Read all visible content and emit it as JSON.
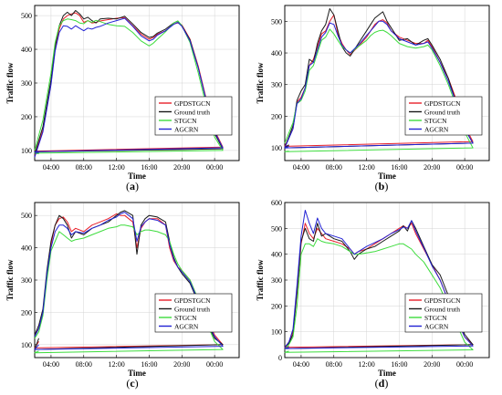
{
  "colors": {
    "GPDSTGCN": "#e8202a",
    "Ground truth": "#1a1a1a",
    "STGCN": "#3ddc3d",
    "AGCRN": "#2222d4"
  },
  "chart_data": [
    {
      "type": "line",
      "caption": "(a)",
      "xlabel": "Time",
      "ylabel": "Traffic flow",
      "xticks": [
        "04:00",
        "08:00",
        "12:00",
        "16:00",
        "20:00",
        "00:00"
      ],
      "yticks": [
        100,
        200,
        300,
        400,
        500
      ],
      "ylim": [
        70,
        530
      ],
      "x": [
        2.0,
        3.0,
        4.0,
        4.5,
        5.0,
        5.5,
        6.0,
        6.5,
        7.0,
        7.5,
        8.0,
        8.5,
        9.0,
        9.5,
        10.0,
        11.0,
        12.0,
        13.0,
        14.0,
        15.0,
        16.0,
        16.5,
        17.0,
        18.0,
        19.0,
        19.5,
        20.0,
        21.0,
        22.0,
        23.0,
        0.0,
        1.0,
        2.0,
        2.5
      ],
      "series": [
        {
          "name": "GPDSTGCN",
          "values": [
            85,
            160,
            300,
            400,
            460,
            490,
            500,
            505,
            508,
            500,
            480,
            485,
            478,
            480,
            484,
            488,
            492,
            494,
            470,
            445,
            430,
            435,
            445,
            455,
            475,
            478,
            472,
            430,
            350,
            250,
            160,
            110,
            98,
            94
          ]
        },
        {
          "name": "Ground truth",
          "values": [
            90,
            170,
            310,
            410,
            470,
            500,
            510,
            500,
            515,
            505,
            490,
            495,
            485,
            478,
            490,
            492,
            490,
            498,
            475,
            450,
            435,
            438,
            448,
            460,
            478,
            484,
            470,
            428,
            345,
            245,
            150,
            105,
            96,
            92
          ]
        },
        {
          "name": "STGCN",
          "values": [
            100,
            190,
            330,
            420,
            470,
            485,
            490,
            488,
            485,
            478,
            476,
            485,
            480,
            486,
            482,
            474,
            470,
            468,
            450,
            425,
            410,
            418,
            430,
            452,
            478,
            484,
            470,
            420,
            330,
            230,
            140,
            100,
            92,
            90
          ]
        },
        {
          "name": "AGCRN",
          "values": [
            80,
            155,
            295,
            395,
            450,
            470,
            468,
            460,
            470,
            462,
            455,
            463,
            460,
            465,
            468,
            478,
            485,
            492,
            468,
            440,
            425,
            430,
            442,
            455,
            474,
            480,
            468,
            425,
            345,
            245,
            155,
            108,
            96,
            93
          ]
        }
      ]
    },
    {
      "type": "line",
      "caption": "(b)",
      "xlabel": "Time",
      "ylabel": "Traffic flow",
      "xticks": [
        "04:00",
        "08:00",
        "12:00",
        "16:00",
        "20:00",
        "00:00"
      ],
      "yticks": [
        100,
        200,
        300,
        400,
        500
      ],
      "ylim": [
        60,
        550
      ],
      "x": [
        2.0,
        3.0,
        3.5,
        4.0,
        4.5,
        5.0,
        5.5,
        6.0,
        6.5,
        7.0,
        7.5,
        8.0,
        8.5,
        9.0,
        9.5,
        10.0,
        11.0,
        12.0,
        12.5,
        13.0,
        13.5,
        14.0,
        14.5,
        15.0,
        16.0,
        17.0,
        18.0,
        19.0,
        19.5,
        20.0,
        21.0,
        22.0,
        23.0,
        0.0,
        1.0,
        2.0,
        2.5
      ],
      "series": [
        {
          "name": "GPDSTGCN",
          "values": [
            105,
            160,
            245,
            260,
            290,
            360,
            380,
            420,
            460,
            470,
            500,
            520,
            460,
            430,
            410,
            395,
            420,
            450,
            470,
            490,
            500,
            505,
            495,
            470,
            450,
            440,
            430,
            430,
            440,
            420,
            370,
            320,
            250,
            170,
            120,
            105,
            108
          ]
        },
        {
          "name": "Ground truth",
          "values": [
            100,
            170,
            250,
            280,
            300,
            380,
            370,
            430,
            470,
            490,
            540,
            520,
            470,
            420,
            400,
            390,
            430,
            470,
            490,
            510,
            520,
            530,
            500,
            480,
            440,
            445,
            425,
            440,
            445,
            425,
            380,
            320,
            240,
            160,
            115,
            100,
            110
          ]
        },
        {
          "name": "STGCN",
          "values": [
            115,
            180,
            240,
            250,
            280,
            345,
            360,
            400,
            440,
            450,
            475,
            460,
            440,
            420,
            410,
            400,
            420,
            440,
            455,
            465,
            470,
            472,
            465,
            455,
            430,
            420,
            415,
            420,
            425,
            410,
            360,
            300,
            230,
            150,
            100,
            88,
            90
          ]
        },
        {
          "name": "AGCRN",
          "values": [
            100,
            160,
            240,
            255,
            290,
            360,
            370,
            410,
            450,
            465,
            495,
            490,
            455,
            425,
            410,
            400,
            425,
            455,
            470,
            485,
            500,
            500,
            490,
            470,
            445,
            435,
            425,
            430,
            435,
            415,
            370,
            310,
            240,
            160,
            115,
            100,
            105
          ]
        }
      ]
    },
    {
      "type": "line",
      "caption": "(c)",
      "xlabel": "Time",
      "ylabel": "Traffic flow",
      "xticks": [
        "04:00",
        "08:00",
        "12:00",
        "16:00",
        "20:00",
        "00:00"
      ],
      "yticks": [
        100,
        200,
        300,
        400,
        500
      ],
      "ylim": [
        60,
        540
      ],
      "x": [
        2.0,
        2.5,
        3.0,
        3.5,
        4.0,
        4.5,
        5.0,
        5.5,
        6.0,
        6.5,
        7.0,
        8.0,
        9.0,
        10.0,
        11.0,
        12.0,
        12.5,
        13.0,
        14.0,
        14.5,
        15.0,
        15.5,
        16.0,
        17.0,
        18.0,
        18.5,
        19.0,
        19.5,
        20.0,
        21.0,
        22.0,
        23.0,
        0.0,
        1.0,
        2.0,
        2.5
      ],
      "series": [
        {
          "name": "GPDSTGCN",
          "values": [
            130,
            150,
            200,
            320,
            410,
            470,
            490,
            495,
            480,
            450,
            460,
            450,
            470,
            480,
            490,
            505,
            500,
            500,
            480,
            400,
            460,
            480,
            490,
            490,
            470,
            400,
            360,
            340,
            330,
            300,
            240,
            180,
            130,
            100,
            90,
            110
          ]
        },
        {
          "name": "Ground truth",
          "values": [
            130,
            160,
            210,
            330,
            420,
            470,
            500,
            490,
            470,
            430,
            450,
            440,
            460,
            470,
            480,
            500,
            510,
            515,
            500,
            380,
            470,
            490,
            500,
            495,
            480,
            420,
            370,
            340,
            320,
            290,
            230,
            170,
            120,
            100,
            85,
            120
          ]
        },
        {
          "name": "STGCN",
          "values": [
            120,
            140,
            190,
            300,
            390,
            420,
            450,
            440,
            430,
            420,
            425,
            430,
            440,
            450,
            460,
            465,
            470,
            470,
            465,
            440,
            450,
            455,
            455,
            450,
            440,
            420,
            380,
            350,
            330,
            300,
            240,
            170,
            110,
            85,
            75,
            80
          ]
        },
        {
          "name": "AGCRN",
          "values": [
            125,
            150,
            200,
            320,
            400,
            450,
            470,
            470,
            460,
            440,
            450,
            445,
            460,
            470,
            485,
            495,
            505,
            510,
            490,
            420,
            465,
            480,
            490,
            485,
            470,
            410,
            365,
            340,
            325,
            295,
            235,
            175,
            125,
            95,
            85,
            100
          ]
        }
      ]
    },
    {
      "type": "line",
      "caption": "(d)",
      "xlabel": "Time",
      "ylabel": "Traffic flow",
      "xticks": [
        "04:00",
        "08:00",
        "12:00",
        "16:00",
        "20:00",
        "00:00"
      ],
      "yticks": [
        0,
        100,
        200,
        300,
        400,
        500,
        600
      ],
      "ylim": [
        0,
        600
      ],
      "x": [
        2.0,
        2.5,
        3.0,
        3.5,
        4.0,
        4.5,
        5.0,
        5.5,
        6.0,
        6.5,
        7.0,
        8.0,
        9.0,
        10.0,
        10.5,
        11.0,
        12.0,
        13.0,
        14.0,
        15.0,
        16.0,
        16.5,
        17.0,
        17.5,
        18.0,
        19.0,
        20.0,
        21.0,
        22.0,
        23.0,
        0.0,
        1.0,
        2.0,
        2.5
      ],
      "series": [
        {
          "name": "GPDSTGCN",
          "values": [
            40,
            60,
            100,
            250,
            440,
            520,
            480,
            460,
            500,
            480,
            460,
            450,
            440,
            420,
            400,
            410,
            420,
            440,
            460,
            480,
            500,
            510,
            500,
            520,
            480,
            420,
            360,
            300,
            220,
            150,
            80,
            50,
            40,
            45
          ]
        },
        {
          "name": "Ground truth",
          "values": [
            40,
            55,
            90,
            260,
            450,
            500,
            460,
            450,
            520,
            470,
            480,
            460,
            450,
            410,
            380,
            400,
            420,
            430,
            450,
            470,
            490,
            510,
            490,
            530,
            500,
            430,
            360,
            320,
            240,
            160,
            90,
            50,
            35,
            40
          ]
        },
        {
          "name": "STGCN",
          "values": [
            30,
            50,
            80,
            200,
            400,
            440,
            440,
            430,
            460,
            450,
            445,
            440,
            430,
            410,
            400,
            400,
            405,
            410,
            420,
            430,
            440,
            440,
            430,
            420,
            400,
            370,
            320,
            270,
            200,
            130,
            60,
            30,
            20,
            25
          ]
        },
        {
          "name": "AGCRN",
          "values": [
            40,
            60,
            110,
            280,
            470,
            570,
            520,
            480,
            540,
            500,
            480,
            470,
            460,
            420,
            400,
            410,
            430,
            445,
            460,
            480,
            495,
            505,
            500,
            530,
            490,
            425,
            355,
            300,
            220,
            150,
            80,
            45,
            35,
            40
          ]
        }
      ]
    }
  ]
}
